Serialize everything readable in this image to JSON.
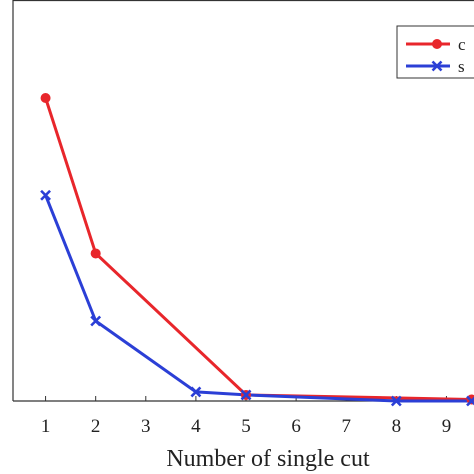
{
  "chart_data": {
    "type": "line",
    "title": "",
    "xlabel": "Number of single cut",
    "ylabel": "",
    "x_ticks": [
      1,
      2,
      3,
      4,
      5,
      6,
      7,
      8,
      9
    ],
    "xlim": [
      0.35,
      9.55
    ],
    "ylim": [
      0,
      1
    ],
    "grid": false,
    "legend_placement": "top-right",
    "series": [
      {
        "name": "c",
        "color": "#e8262b",
        "marker": "circle",
        "x": [
          1,
          2,
          5,
          9.5
        ],
        "y": [
          1.0,
          0.487,
          0.02,
          0.005
        ]
      },
      {
        "name": "s",
        "color": "#2b3fd6",
        "marker": "x",
        "x": [
          1,
          2,
          4,
          5,
          8,
          9.5
        ],
        "y": [
          0.679,
          0.264,
          0.03,
          0.02,
          0.0,
          0.0
        ]
      }
    ]
  }
}
